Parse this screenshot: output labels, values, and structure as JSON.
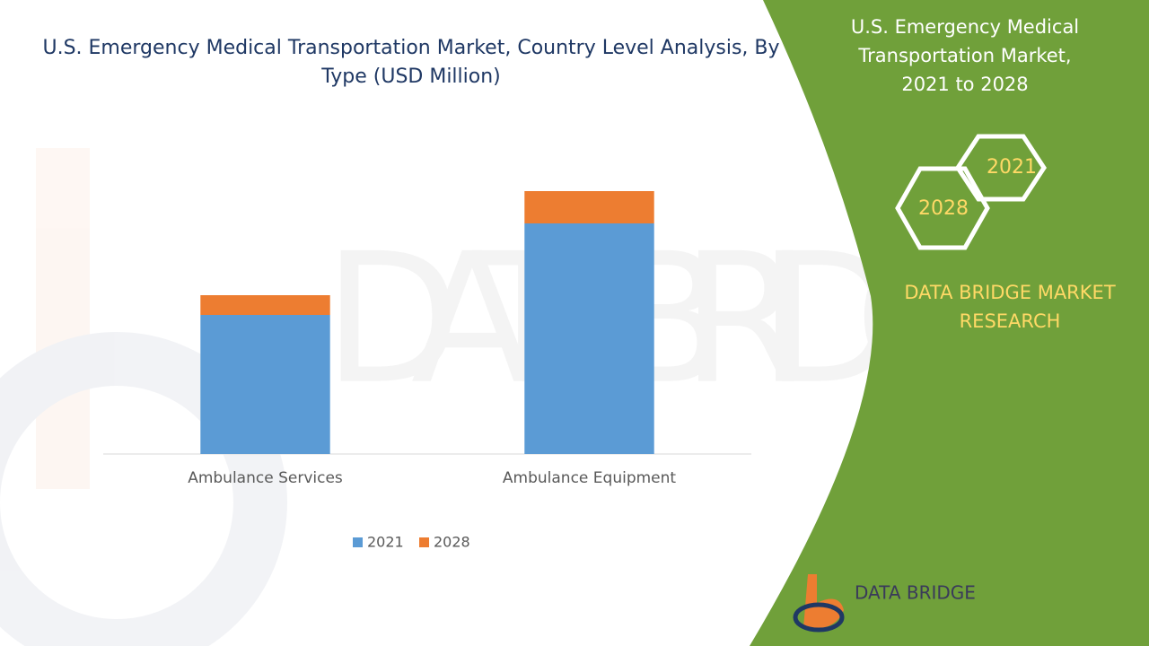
{
  "chart_data": {
    "type": "stacked_bar",
    "title": "U.S. Emergency Medical Transportation Market, Country Level Analysis, By Type (USD Million)",
    "categories": [
      "Ambulance Services",
      "Ambulance Equipment"
    ],
    "series": [
      {
        "name": "2021",
        "color": "#5b9bd5",
        "values": [
          155,
          257
        ]
      },
      {
        "name": "2028",
        "color": "#ed7d31",
        "values": [
          22,
          36
        ]
      }
    ],
    "ylim": [
      0,
      300
    ],
    "legend": "bottom"
  },
  "panel": {
    "title": "U.S. Emergency Medical Transportation Market, 2021 to 2028",
    "hexagons": [
      "2021",
      "2028"
    ],
    "brand": "DATA BRIDGE MARKET RESEARCH"
  },
  "logo": {
    "text": "DATA BRIDGE"
  }
}
